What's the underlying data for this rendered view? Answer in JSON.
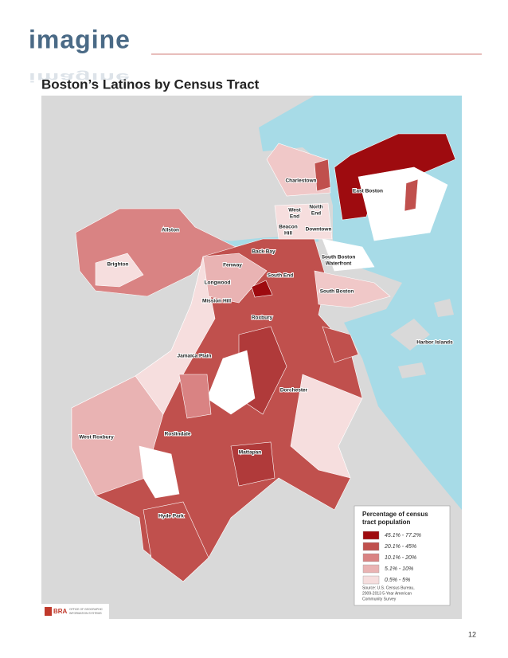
{
  "header": {
    "logo": "imagine"
  },
  "title": "Boston’s Latinos by Census Tract",
  "map": {
    "labels": [
      [
        "Charlestown"
      ],
      [
        "East Boston"
      ],
      [
        "West",
        "End"
      ],
      [
        "North",
        "End"
      ],
      [
        "Beacon",
        "Hill"
      ],
      [
        "Downtown"
      ],
      [
        "Allston"
      ],
      [
        "Brighton"
      ],
      [
        "Back Bay"
      ],
      [
        "Fenway"
      ],
      [
        "South Boston",
        "Waterfront"
      ],
      [
        "South End"
      ],
      [
        "Longwood"
      ],
      [
        "Mission Hill"
      ],
      [
        "South Boston"
      ],
      [
        "Roxbury"
      ],
      [
        "Harbor Islands"
      ],
      [
        "Jamaica Plain"
      ],
      [
        "Dorchester"
      ],
      [
        "West Roxbury"
      ],
      [
        "Roslindale"
      ],
      [
        "Mattapan"
      ],
      [
        "Hyde Park"
      ]
    ],
    "legend": {
      "title": [
        "Percentage of census",
        "tract population"
      ],
      "items": [
        {
          "label": "45.1% - 77.2%",
          "color": "#9e0b0f"
        },
        {
          "label": "20.1% - 45%",
          "color": "#c0504d"
        },
        {
          "label": "10.1% - 20%",
          "color": "#d98383"
        },
        {
          "label": "5.1% - 10%",
          "color": "#e9b3b3"
        },
        {
          "label": "0.5% - 5%",
          "color": "#f6dede"
        }
      ],
      "source": [
        "Source: U.S. Census Bureau,",
        "2009-2013 5-Year American",
        "Community Survey"
      ]
    },
    "credit": {
      "org": "BRA",
      "unit": [
        "OFFICE OF GEOGRAPHIC",
        "INFORMATION SYSTEMS"
      ]
    }
  },
  "page_number": "12"
}
